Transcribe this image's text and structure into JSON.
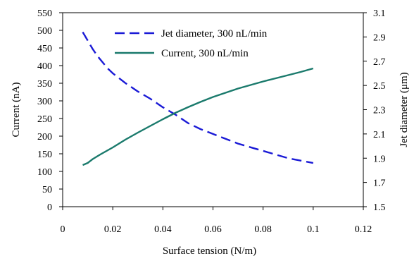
{
  "chart_data": {
    "type": "line",
    "xlabel": "Surface tension (N/m)",
    "ylabel_left": "Current (nA)",
    "ylabel_right": "Jet diameter (μm)",
    "xlim": [
      0,
      0.12
    ],
    "ylim_left": [
      0,
      550
    ],
    "ylim_right": [
      1.5,
      3.1
    ],
    "x_ticks": [
      0,
      0.02,
      0.04,
      0.06,
      0.08,
      0.1,
      0.12
    ],
    "x_tick_labels": [
      "0",
      "0.02",
      "0.04",
      "0.06",
      "0.08",
      "0.1",
      "0.12"
    ],
    "y_left_ticks": [
      0,
      50,
      100,
      150,
      200,
      250,
      300,
      350,
      400,
      450,
      500,
      550
    ],
    "y_left_tick_labels": [
      "0",
      "50",
      "100",
      "150",
      "200",
      "250",
      "300",
      "350",
      "400",
      "450",
      "500",
      "550"
    ],
    "y_right_ticks": [
      1.5,
      1.7,
      1.9,
      2.1,
      2.3,
      2.5,
      2.7,
      2.9,
      3.1
    ],
    "y_right_tick_labels": [
      "1.5",
      "1.7",
      "1.9",
      "2.1",
      "2.3",
      "2.5",
      "2.7",
      "2.9",
      "3.1"
    ],
    "grid": false,
    "legend_position": "top-center",
    "series": [
      {
        "name": "Jet diameter, 300 nL/min",
        "axis": "right",
        "color": "#1a1ad6",
        "style": "dashed",
        "x": [
          0.008,
          0.01,
          0.012,
          0.014,
          0.016,
          0.018,
          0.02,
          0.025,
          0.03,
          0.035,
          0.04,
          0.045,
          0.05,
          0.055,
          0.06,
          0.065,
          0.07,
          0.075,
          0.08,
          0.085,
          0.09,
          0.095,
          0.1
        ],
        "y": [
          2.94,
          2.87,
          2.8,
          2.74,
          2.69,
          2.64,
          2.6,
          2.52,
          2.45,
          2.39,
          2.32,
          2.26,
          2.19,
          2.14,
          2.1,
          2.06,
          2.02,
          1.99,
          1.96,
          1.93,
          1.9,
          1.88,
          1.86
        ]
      },
      {
        "name": "Current, 300 nL/min",
        "axis": "left",
        "color": "#1a7a6c",
        "style": "solid",
        "x": [
          0.008,
          0.01,
          0.012,
          0.015,
          0.02,
          0.025,
          0.03,
          0.035,
          0.04,
          0.045,
          0.05,
          0.055,
          0.06,
          0.065,
          0.07,
          0.075,
          0.08,
          0.085,
          0.09,
          0.095,
          0.1
        ],
        "y": [
          118,
          124,
          135,
          148,
          168,
          190,
          210,
          229,
          248,
          266,
          282,
          297,
          311,
          323,
          335,
          345,
          355,
          364,
          373,
          382,
          392
        ]
      }
    ]
  }
}
